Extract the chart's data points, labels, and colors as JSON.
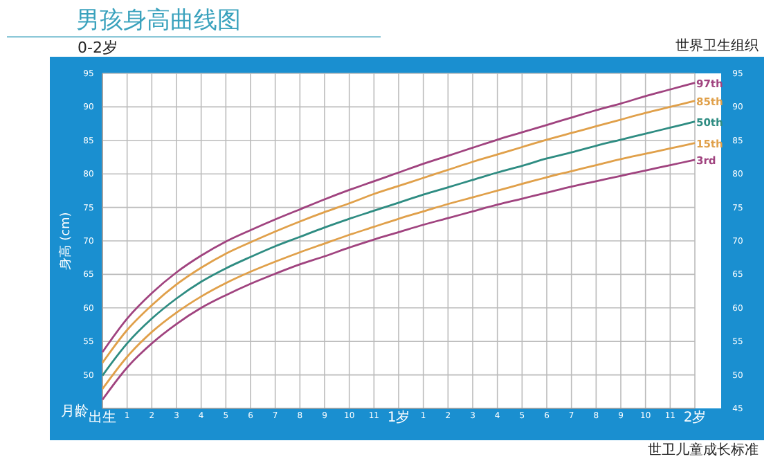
{
  "chart_data": {
    "type": "line",
    "title": "男孩身高曲线图",
    "subtitle": "0-2岁",
    "xlabel": "月龄",
    "ylabel": "身高 (cm)",
    "annotations": [
      "世界卫生组织",
      "世卫儿童成长标准"
    ],
    "categories": [
      "出生",
      "1",
      "2",
      "3",
      "4",
      "5",
      "6",
      "7",
      "8",
      "9",
      "10",
      "11",
      "1岁",
      "1",
      "2",
      "3",
      "4",
      "5",
      "6",
      "7",
      "8",
      "9",
      "10",
      "11",
      "2岁"
    ],
    "ylim": [
      45,
      95
    ],
    "yticks": [
      50,
      55,
      60,
      65,
      70,
      75,
      80,
      85,
      90,
      95
    ],
    "y2lim": [
      45,
      95
    ],
    "y2ticks": [
      45,
      50,
      55,
      60,
      65,
      70,
      75,
      80,
      85,
      90,
      95
    ],
    "grid": true,
    "legend": false,
    "marker": "none",
    "line_style": "solid",
    "series": [
      {
        "name": "97th",
        "color": "#a0437f",
        "values": [
          53.4,
          58.4,
          62.2,
          65.3,
          67.8,
          69.9,
          71.6,
          73.2,
          74.7,
          76.2,
          77.6,
          78.9,
          80.2,
          81.5,
          82.7,
          83.9,
          85.1,
          86.2,
          87.3,
          88.4,
          89.5,
          90.5,
          91.6,
          92.6,
          93.6
        ]
      },
      {
        "name": "85th",
        "color": "#e0a04a",
        "values": [
          51.8,
          56.7,
          60.4,
          63.5,
          66.0,
          68.1,
          69.8,
          71.4,
          72.9,
          74.3,
          75.6,
          77.0,
          78.2,
          79.4,
          80.6,
          81.8,
          82.9,
          84.0,
          85.1,
          86.1,
          87.1,
          88.1,
          89.1,
          90.0,
          90.9
        ]
      },
      {
        "name": "50th",
        "color": "#2e8c82",
        "values": [
          49.9,
          54.7,
          58.4,
          61.4,
          63.9,
          65.9,
          67.6,
          69.2,
          70.6,
          72.0,
          73.3,
          74.5,
          75.7,
          76.9,
          78.0,
          79.1,
          80.2,
          81.2,
          82.3,
          83.2,
          84.2,
          85.1,
          86.0,
          86.9,
          87.8
        ]
      },
      {
        "name": "15th",
        "color": "#e0a04a",
        "values": [
          47.9,
          52.7,
          56.4,
          59.3,
          61.7,
          63.7,
          65.4,
          66.9,
          68.3,
          69.6,
          70.9,
          72.1,
          73.3,
          74.4,
          75.5,
          76.5,
          77.5,
          78.5,
          79.5,
          80.4,
          81.3,
          82.2,
          83.0,
          83.8,
          84.6
        ]
      },
      {
        "name": "3rd",
        "color": "#a0437f",
        "values": [
          46.3,
          51.1,
          54.7,
          57.6,
          60.0,
          61.9,
          63.6,
          65.1,
          66.5,
          67.7,
          69.0,
          70.2,
          71.3,
          72.4,
          73.4,
          74.4,
          75.4,
          76.3,
          77.2,
          78.1,
          78.9,
          79.7,
          80.5,
          81.3,
          82.1
        ]
      }
    ]
  }
}
